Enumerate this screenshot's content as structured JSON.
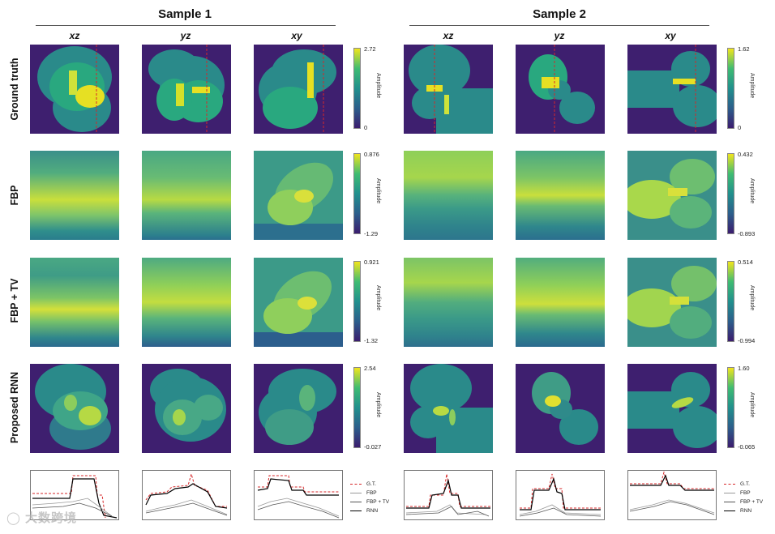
{
  "samples": [
    {
      "title": "Sample 1",
      "columns": [
        "xz",
        "yz",
        "xy"
      ]
    },
    {
      "title": "Sample 2",
      "columns": [
        "xz",
        "yz",
        "xy"
      ]
    }
  ],
  "rows": [
    "Ground truth",
    "FBP",
    "FBP + TV",
    "Proposed RNN"
  ],
  "colorbars": [
    [
      {
        "max": "2.72",
        "min": "0"
      },
      {
        "max": "1.62",
        "min": "0"
      }
    ],
    [
      {
        "max": "0.876",
        "min": "-1.29"
      },
      {
        "max": "0.432",
        "min": "-0.893"
      }
    ],
    [
      {
        "max": "0.921",
        "min": "-1.32"
      },
      {
        "max": "0.514",
        "min": "-0.994"
      }
    ],
    [
      {
        "max": "2.54",
        "min": "-0.027"
      },
      {
        "max": "1.60",
        "min": "-0.065"
      }
    ]
  ],
  "colorbar_label": "Amplitude",
  "legend": [
    {
      "label": "G.T.",
      "color": "#d62728",
      "dash": true
    },
    {
      "label": "FBP",
      "color": "#999999",
      "dash": false
    },
    {
      "label": "FBP + TV",
      "color": "#555555",
      "dash": false
    },
    {
      "label": "RNN",
      "color": "#000000",
      "dash": false
    }
  ],
  "watermark": "大数跨境",
  "colors": {
    "viridis_low": "#3b1c6e",
    "viridis_mid": "#21908d",
    "viridis_high": "#f1e51d"
  }
}
